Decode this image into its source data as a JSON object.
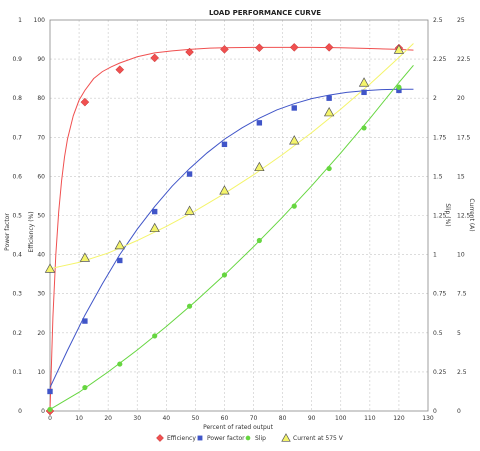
{
  "chart_data": {
    "type": "line",
    "title": "LOAD PERFORMANCE CURVE",
    "xlabel": "Percent of rated output",
    "xlim": [
      0,
      130
    ],
    "xticks": [
      0,
      10,
      20,
      30,
      40,
      50,
      60,
      70,
      80,
      90,
      100,
      110,
      120,
      130
    ],
    "grid": true,
    "legend_position": "bottom",
    "axes": {
      "power_factor": {
        "label": "Power factor",
        "side": "left-outer",
        "lim": [
          0,
          1
        ],
        "ticks": [
          "0",
          "0.1",
          "0.2",
          "0.3",
          "0.4",
          "0.5",
          "0.6",
          "0.7",
          "0.8",
          "0.9",
          "1"
        ]
      },
      "efficiency": {
        "label": "Efficiency (%)",
        "side": "left-inner",
        "lim": [
          0,
          100
        ],
        "ticks": [
          "0",
          "10",
          "20",
          "30",
          "40",
          "50",
          "60",
          "70",
          "80",
          "90",
          "100"
        ]
      },
      "slip": {
        "label": "Slip (%)",
        "side": "right-inner",
        "lim": [
          0,
          2.5
        ],
        "ticks": [
          "0",
          "0.25",
          "0.5",
          "0.75",
          "1",
          "1.25",
          "1.5",
          "1.75",
          "2",
          "2.25",
          "2.5"
        ]
      },
      "current": {
        "label": "Current (A)",
        "side": "right-outer",
        "lim": [
          0,
          25
        ],
        "ticks": [
          "0",
          "2.5",
          "5",
          "7.5",
          "10",
          "12.5",
          "15",
          "17.5",
          "20",
          "22.5",
          "25"
        ]
      }
    },
    "series": [
      {
        "name": "Efficiency",
        "axis": "efficiency",
        "color": "#f05050",
        "marker": "diamond",
        "x": [
          0,
          12,
          24,
          36,
          48,
          60,
          72,
          84,
          96,
          120
        ],
        "values": [
          0,
          79,
          87.3,
          90.3,
          91.8,
          92.5,
          92.9,
          93,
          93,
          92.8
        ],
        "curve_x": [
          0,
          1,
          2,
          3,
          4,
          5,
          6,
          8,
          10,
          12,
          15,
          18,
          21,
          24,
          30,
          36,
          42,
          48,
          55,
          60,
          70,
          80,
          90,
          100,
          110,
          120,
          125
        ],
        "curve_y": [
          0,
          24,
          40,
          51,
          59,
          65,
          69.5,
          75.5,
          79.5,
          82,
          85,
          86.8,
          88,
          89,
          90.6,
          91.6,
          92.1,
          92.5,
          92.8,
          92.9,
          93,
          93,
          93,
          92.9,
          92.7,
          92.5,
          92.3
        ]
      },
      {
        "name": "Power factor",
        "axis": "power_factor",
        "color": "#4055c8",
        "marker": "square",
        "x": [
          0,
          12,
          24,
          36,
          48,
          60,
          72,
          84,
          96,
          108,
          120
        ],
        "values": [
          0.05,
          0.23,
          0.385,
          0.51,
          0.606,
          0.682,
          0.737,
          0.775,
          0.8,
          0.815,
          0.82
        ],
        "curve_x": [
          0,
          6,
          12,
          18,
          24,
          30,
          36,
          42,
          48,
          54,
          60,
          66,
          72,
          78,
          84,
          90,
          96,
          102,
          108,
          114,
          120,
          125
        ],
        "curve_y": [
          0.06,
          0.155,
          0.245,
          0.325,
          0.4,
          0.465,
          0.523,
          0.575,
          0.62,
          0.66,
          0.695,
          0.724,
          0.749,
          0.77,
          0.786,
          0.799,
          0.808,
          0.815,
          0.819,
          0.822,
          0.823,
          0.823
        ]
      },
      {
        "name": "Slip",
        "axis": "slip",
        "color": "#66d640",
        "marker": "circle",
        "x": [
          0,
          12,
          24,
          36,
          48,
          60,
          72,
          84,
          96,
          108,
          120
        ],
        "values": [
          0.01,
          0.15,
          0.3,
          0.48,
          0.67,
          0.87,
          1.09,
          1.31,
          1.55,
          1.81,
          2.07
        ],
        "curve_x": [
          0,
          10,
          20,
          30,
          40,
          50,
          60,
          70,
          80,
          90,
          100,
          110,
          120,
          125
        ],
        "curve_y": [
          0.01,
          0.12,
          0.25,
          0.39,
          0.54,
          0.7,
          0.87,
          1.05,
          1.24,
          1.44,
          1.65,
          1.87,
          2.1,
          2.21
        ]
      },
      {
        "name": "Current at 575 V",
        "axis": "current",
        "color": "#f4f46a",
        "marker": "triangle",
        "x": [
          0,
          12,
          24,
          36,
          48,
          60,
          72,
          84,
          96,
          108,
          120
        ],
        "values": [
          9.1,
          9.8,
          10.6,
          11.7,
          12.8,
          14.1,
          15.6,
          17.3,
          19.1,
          21,
          23.1
        ],
        "curve_x": [
          0,
          10,
          20,
          30,
          40,
          50,
          60,
          70,
          80,
          90,
          100,
          110,
          120,
          125
        ],
        "curve_y": [
          9.1,
          9.5,
          10.1,
          10.9,
          11.8,
          12.8,
          13.9,
          15.1,
          16.4,
          17.8,
          19.3,
          20.9,
          22.6,
          23.5
        ]
      }
    ]
  }
}
